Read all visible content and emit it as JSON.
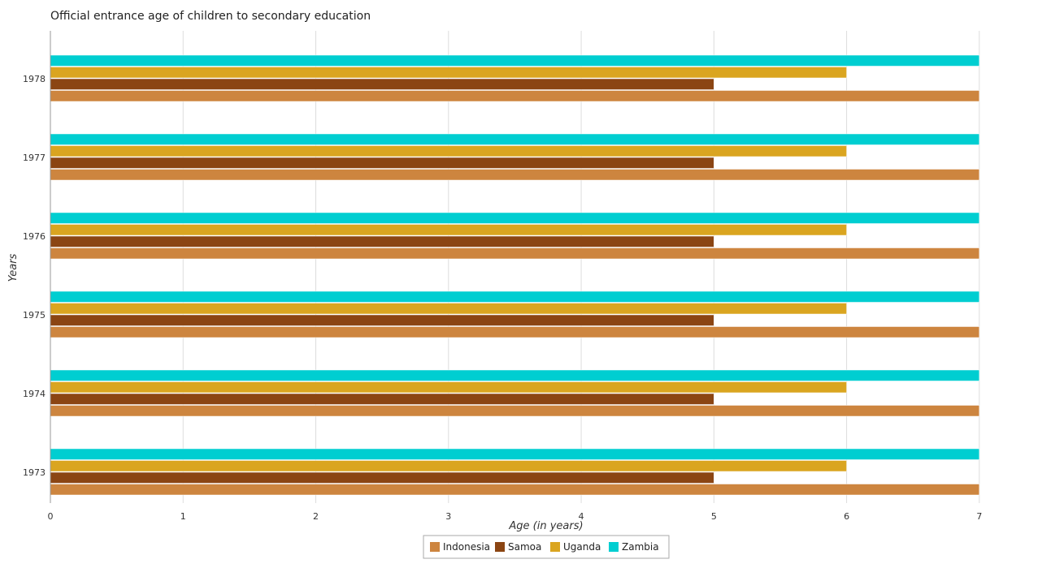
{
  "chart_data": {
    "type": "bar",
    "orientation": "horizontal",
    "title": "Official entrance age of children to secondary education",
    "xlabel": "Age (in years)",
    "ylabel": "Years",
    "categories": [
      "1973",
      "1974",
      "1975",
      "1976",
      "1977",
      "1978"
    ],
    "series": [
      {
        "name": "Indonesia",
        "color": "#cd853f",
        "values": [
          7,
          7,
          7,
          7,
          7,
          7
        ]
      },
      {
        "name": "Samoa",
        "color": "#8b4513",
        "values": [
          5,
          5,
          5,
          5,
          5,
          5
        ]
      },
      {
        "name": "Uganda",
        "color": "#daa520",
        "values": [
          6,
          6,
          6,
          6,
          6,
          6
        ]
      },
      {
        "name": "Zambia",
        "color": "#00ced1",
        "values": [
          7,
          7,
          7,
          7,
          7,
          7
        ]
      }
    ],
    "xlim": [
      0,
      7.35
    ],
    "xticks": [
      "0",
      "1",
      "2",
      "3",
      "4",
      "5",
      "6",
      "7"
    ],
    "grid": true,
    "legend_position": "bottom"
  }
}
